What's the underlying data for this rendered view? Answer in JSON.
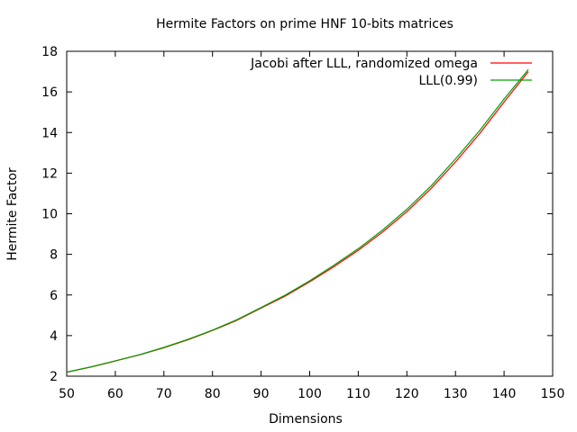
{
  "chart_data": {
    "type": "line",
    "title": "Hermite Factors on prime HNF 10-bits matrices",
    "xlabel": "Dimensions",
    "ylabel": "Hermite Factor",
    "xlim": [
      50,
      150
    ],
    "ylim": [
      2,
      18
    ],
    "xticks": [
      50,
      60,
      70,
      80,
      90,
      100,
      110,
      120,
      130,
      140,
      150
    ],
    "yticks": [
      2,
      4,
      6,
      8,
      10,
      12,
      14,
      16,
      18
    ],
    "grid": false,
    "legend_position": "top-right",
    "series": [
      {
        "name": "Jacobi after LLL, randomized omega",
        "color": "#ff0000",
        "x": [
          50,
          55,
          60,
          65,
          70,
          75,
          80,
          85,
          90,
          95,
          100,
          105,
          110,
          115,
          120,
          125,
          130,
          135,
          140,
          145
        ],
        "y": [
          2.2,
          2.45,
          2.75,
          3.05,
          3.4,
          3.8,
          4.25,
          4.75,
          5.35,
          5.95,
          6.65,
          7.4,
          8.2,
          9.1,
          10.1,
          11.25,
          12.55,
          13.95,
          15.5,
          17.0
        ]
      },
      {
        "name": "LLL(0.99)",
        "color": "#00a000",
        "x": [
          50,
          55,
          60,
          65,
          70,
          75,
          80,
          85,
          90,
          95,
          100,
          105,
          110,
          115,
          120,
          125,
          130,
          135,
          140,
          145
        ],
        "y": [
          2.2,
          2.46,
          2.76,
          3.06,
          3.42,
          3.82,
          4.27,
          4.78,
          5.38,
          6.0,
          6.7,
          7.47,
          8.28,
          9.2,
          10.22,
          11.38,
          12.7,
          14.1,
          15.65,
          17.1
        ]
      }
    ]
  }
}
